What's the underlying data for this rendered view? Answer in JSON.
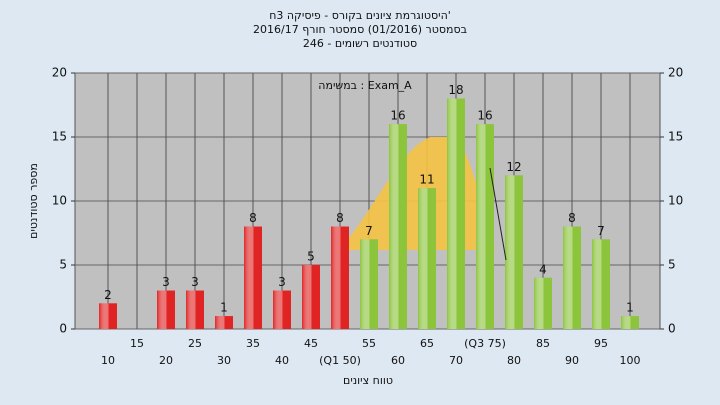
{
  "chart_data": {
    "type": "bar",
    "title": "היסטוגרמת ציונים בקורס - פיסיקה 3ח'",
    "subtitle": "בסמסטר (01/2016) סמסטר חורף 2016/17",
    "subtitle2": "סטודנטים רשומים - 246",
    "annotation": "במשימה : Exam_A",
    "y_label": "מספר סטודנטים",
    "x_label": "טווח ציונים",
    "categories": [
      "10",
      "15",
      "20",
      "25",
      "30",
      "35",
      "40",
      "45",
      "(Q1 50)",
      "55",
      "60",
      "65",
      "70",
      "(Q3 75)",
      "80",
      "85",
      "90",
      "95",
      "100"
    ],
    "values": [
      2,
      0,
      3,
      3,
      1,
      8,
      3,
      5,
      8,
      7,
      16,
      11,
      18,
      16,
      12,
      4,
      8,
      7,
      1
    ],
    "colors": [
      "#e02424",
      "#e02424",
      "#e02424",
      "#e02424",
      "#e02424",
      "#e02424",
      "#e02424",
      "#e02424",
      "#e02424",
      "#8cc43c",
      "#8cc43c",
      "#8cc43c",
      "#8cc43c",
      "#8cc43c",
      "#8cc43c",
      "#8cc43c",
      "#8cc43c",
      "#8cc43c",
      "#8cc43c"
    ],
    "ylim": [
      0,
      20
    ],
    "yticks": [
      0,
      5,
      10,
      15,
      20
    ],
    "y2lim": [
      0,
      20
    ],
    "y2ticks": [
      0,
      5,
      10,
      15,
      20
    ],
    "grid": true
  }
}
